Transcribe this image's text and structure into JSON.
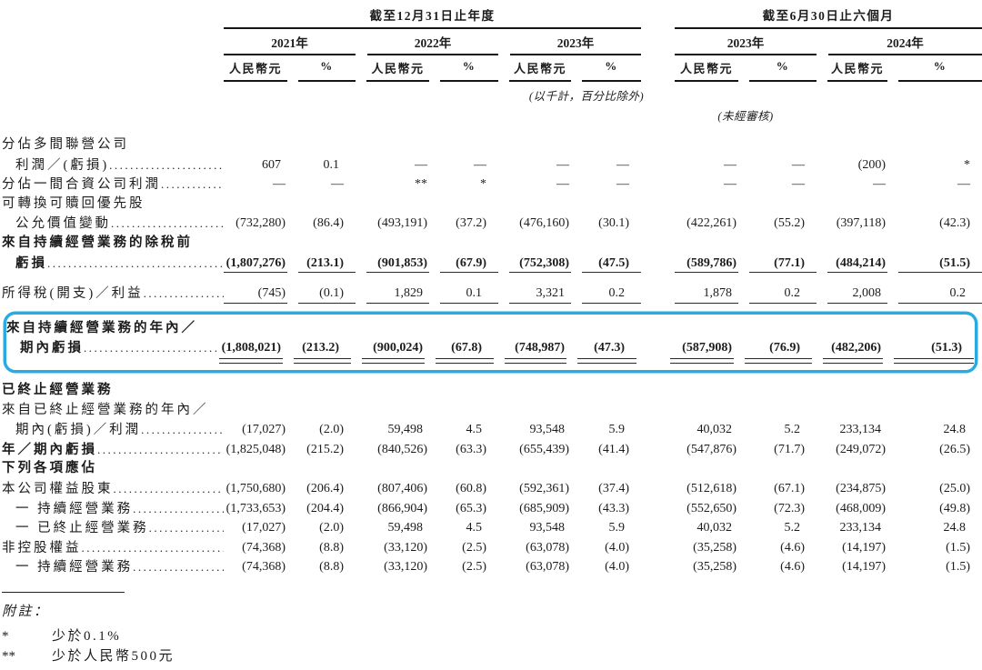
{
  "highlight_color": "#29ABE2",
  "table": {
    "col_groups": [
      {
        "title": "截至12月31日止年度",
        "years": [
          "2021年",
          "2022年",
          "2023年"
        ]
      },
      {
        "title": "截至6月30日止六個月",
        "years": [
          "2023年",
          "2024年"
        ]
      }
    ],
    "units": {
      "currency": "人民幣元",
      "percent": "%"
    },
    "notes": {
      "scale": "(以千計，百分比除外)",
      "unaudited": "(未經審核)"
    },
    "columns": [
      "fy2021-rmb",
      "fy2021-pct",
      "fy2022-rmb",
      "fy2022-pct",
      "fy2023-rmb",
      "fy2023-pct",
      "h1-2023-rmb",
      "h1-2023-pct",
      "h1-2024-rmb",
      "h1-2024-pct"
    ],
    "rows": [
      {
        "label": "分佔多間聯營公司"
      },
      {
        "label": "利潤／(虧損)",
        "indent": true,
        "leader": true,
        "values": [
          "607",
          "0.1",
          "—",
          "—",
          "—",
          "—",
          "—",
          "—",
          "(200)",
          "*"
        ]
      },
      {
        "label": "分佔一間合資公司利潤",
        "leader": true,
        "values": [
          "—",
          "—",
          "**",
          "*",
          "—",
          "—",
          "—",
          "—",
          "—",
          "—"
        ]
      },
      {
        "label": "可轉換可贖回優先股"
      },
      {
        "label": "公允價值變動",
        "indent": true,
        "leader": true,
        "values": [
          "(732,280)",
          "(86.4)",
          "(493,191)",
          "(37.2)",
          "(476,160)",
          "(30.1)",
          "(422,261)",
          "(55.2)",
          "(397,118)",
          "(42.3)"
        ]
      },
      {
        "label": "來自持續經營業務的除稅前",
        "bold": true
      },
      {
        "label": "虧損",
        "indent": true,
        "bold": true,
        "leader": true,
        "bold_values": true,
        "rule": "single",
        "key": "pretax_loss",
        "values": [
          "(1,807,276)",
          "(213.1)",
          "(901,853)",
          "(67.9)",
          "(752,308)",
          "(47.5)",
          "(589,786)",
          "(77.1)",
          "(484,214)",
          "(51.5)"
        ]
      },
      {
        "label": "所得稅(開支)／利益",
        "leader": true,
        "rule": "single",
        "key": "income_tax",
        "values": [
          "(745)",
          "(0.1)",
          "1,829",
          "0.1",
          "3,321",
          "0.2",
          "1,878",
          "0.2",
          "2,008",
          "0.2"
        ]
      },
      {
        "label": "來自持續經營業務的年內／",
        "bold": true,
        "box": true
      },
      {
        "label": "期內虧損",
        "indent": true,
        "bold": true,
        "leader": true,
        "bold_values": true,
        "rule": "double",
        "box": true,
        "key": "period_loss_continuing",
        "values": [
          "(1,808,021)",
          "(213.2)",
          "(900,024)",
          "(67.8)",
          "(748,987)",
          "(47.3)",
          "(587,908)",
          "(76.9)",
          "(482,206)",
          "(51.3)"
        ]
      },
      {
        "label": "已終止經營業務",
        "bold": true,
        "section": true
      },
      {
        "label": "來自已終止經營業務的年內／"
      },
      {
        "label": "期內(虧損)／利潤",
        "indent": true,
        "leader": true,
        "values": [
          "(17,027)",
          "(2.0)",
          "59,498",
          "4.5",
          "93,548",
          "5.9",
          "40,032",
          "5.2",
          "233,134",
          "24.8"
        ]
      },
      {
        "label": "年／期內虧損",
        "bold": true,
        "leader": true,
        "values": [
          "(1,825,048)",
          "(215.2)",
          "(840,526)",
          "(63.3)",
          "(655,439)",
          "(41.4)",
          "(547,876)",
          "(71.7)",
          "(249,072)",
          "(26.5)"
        ]
      },
      {
        "label": "下列各項應佔",
        "bold": true,
        "section": true
      },
      {
        "label": "本公司權益股東",
        "leader": true,
        "values": [
          "(1,750,680)",
          "(206.4)",
          "(807,406)",
          "(60.8)",
          "(592,361)",
          "(37.4)",
          "(512,618)",
          "(67.1)",
          "(234,875)",
          "(25.0)"
        ]
      },
      {
        "label": "一 持續經營業務",
        "indent": true,
        "leader": true,
        "values": [
          "(1,733,653)",
          "(204.4)",
          "(866,904)",
          "(65.3)",
          "(685,909)",
          "(43.3)",
          "(552,650)",
          "(72.3)",
          "(468,009)",
          "(49.8)"
        ]
      },
      {
        "label": "一 已終止經營業務",
        "indent": true,
        "leader": true,
        "values": [
          "(17,027)",
          "(2.0)",
          "59,498",
          "4.5",
          "93,548",
          "5.9",
          "40,032",
          "5.2",
          "233,134",
          "24.8"
        ]
      },
      {
        "label": "非控股權益",
        "leader": true,
        "values": [
          "(74,368)",
          "(8.8)",
          "(33,120)",
          "(2.5)",
          "(63,078)",
          "(4.0)",
          "(35,258)",
          "(4.6)",
          "(14,197)",
          "(1.5)"
        ]
      },
      {
        "label": "一 持續經營業務",
        "indent": true,
        "leader": true,
        "values": [
          "(74,368)",
          "(8.8)",
          "(33,120)",
          "(2.5)",
          "(63,078)",
          "(4.0)",
          "(35,258)",
          "(4.6)",
          "(14,197)",
          "(1.5)"
        ]
      }
    ]
  },
  "footnotes": {
    "title": "附註：",
    "items": [
      {
        "marker": "*",
        "text": "少於0.1%"
      },
      {
        "marker": "**",
        "text": "少於人民幣500元"
      }
    ]
  }
}
